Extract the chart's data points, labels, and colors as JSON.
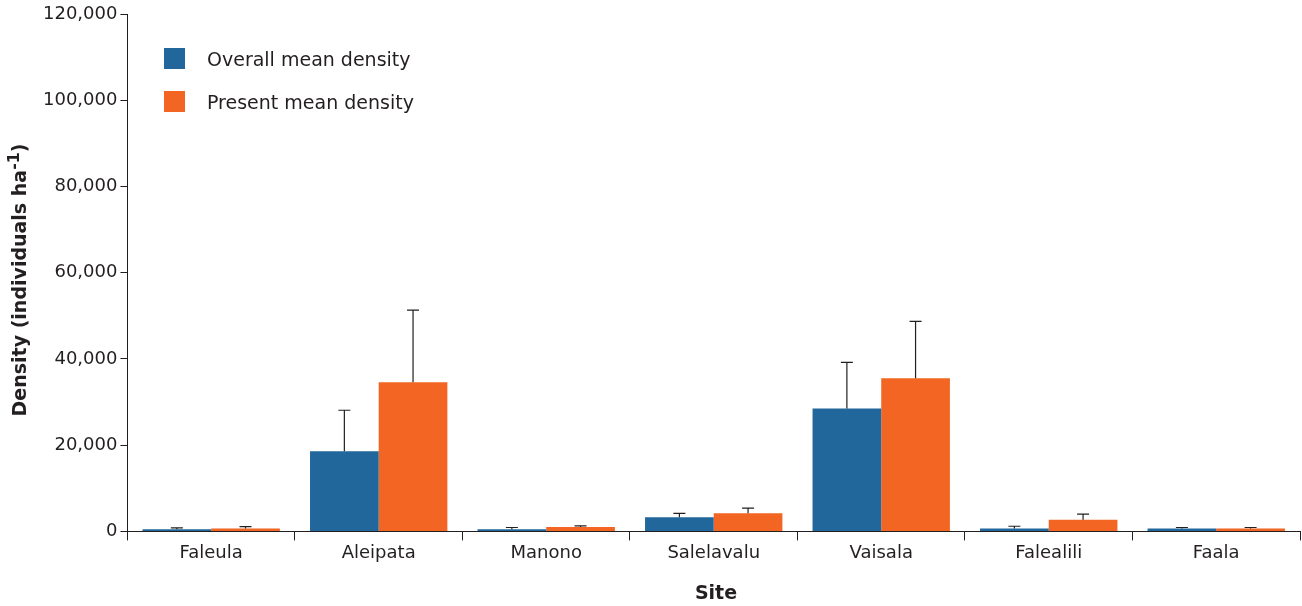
{
  "chart_data": {
    "type": "bar",
    "xlabel": "Site",
    "ylabel": "Density (individuals ha$^{-1}$)",
    "categories": [
      "Faleula",
      "Aleipata",
      "Manono",
      "Salelavalu",
      "Vaisala",
      "Falealili",
      "Faala"
    ],
    "series": [
      {
        "name": "Overall mean density",
        "color": "#22679b",
        "values": [
          500,
          18600,
          500,
          3300,
          28500,
          700,
          700
        ],
        "errors": [
          [
            500,
            800
          ],
          [
            18600,
            28100
          ],
          [
            500,
            900
          ],
          [
            3300,
            4200
          ],
          [
            28500,
            39200
          ],
          [
            700,
            1200
          ],
          [
            700,
            900
          ]
        ]
      },
      {
        "name": "Present mean density",
        "color": "#f26522",
        "values": [
          700,
          34600,
          1000,
          4200,
          35500,
          2700,
          700
        ],
        "errors": [
          [
            700,
            1100
          ],
          [
            34600,
            51300
          ],
          [
            1000,
            1300
          ],
          [
            4200,
            5400
          ],
          [
            35500,
            48700
          ],
          [
            2700,
            4000
          ],
          [
            700,
            900
          ]
        ]
      }
    ],
    "ylim": [
      0,
      120000
    ],
    "yticks": [
      0,
      {
        "value": 20000,
        "label": "20,000"
      },
      {
        "value": 40000,
        "label": "40,000"
      },
      {
        "value": 60000,
        "label": "60,000"
      },
      {
        "value": 80000,
        "label": "80,000"
      },
      {
        "value": 100000,
        "label": "100,000"
      },
      {
        "value": 120000,
        "label": "120,000"
      }
    ],
    "grid": false,
    "legend": "top left"
  }
}
